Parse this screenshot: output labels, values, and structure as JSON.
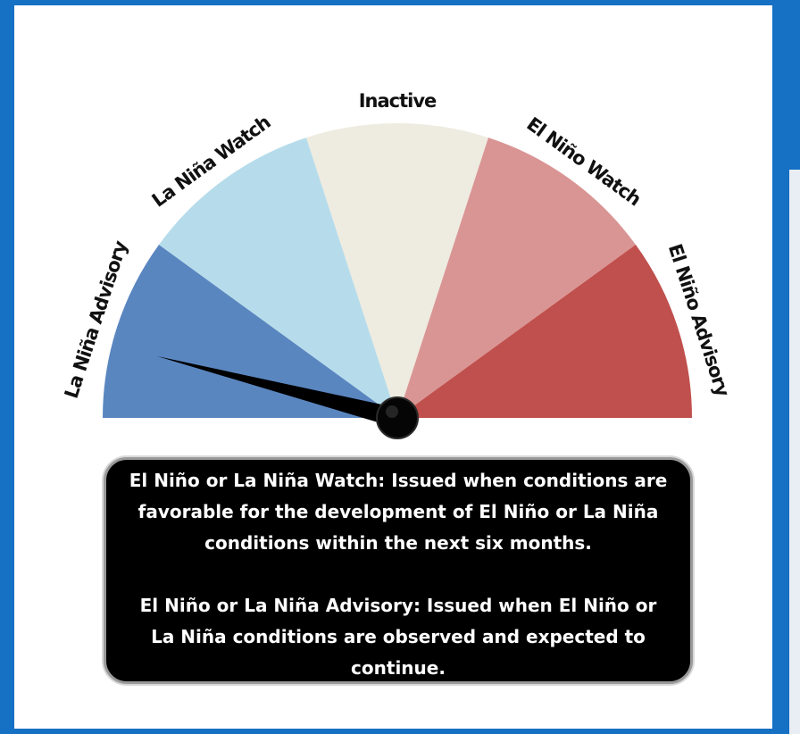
{
  "gauge": {
    "segments": [
      {
        "label": "La Niña Advisory",
        "color": "#5a86c0"
      },
      {
        "label": "La Niña Watch",
        "color": "#b6dceb"
      },
      {
        "label": "Inactive",
        "color": "#eeebe0"
      },
      {
        "label": "El Niño Watch",
        "color": "#d99594"
      },
      {
        "label": "El Niño Advisory",
        "color": "#c0504d"
      }
    ],
    "pointer_segment": "La Niña Advisory",
    "pointer_level": 0.08
  },
  "info": {
    "watch_text": "El Niño or La Niña Watch: Issued when conditions are favorable for the development of El Niño or La Niña conditions within the next six months.",
    "advisory_text": "El Niño or La Niña Advisory: Issued when El Niño or La Niña conditions are observed and expected to continue."
  },
  "colors": {
    "frame": "#1670c4",
    "needle": "#000000"
  }
}
